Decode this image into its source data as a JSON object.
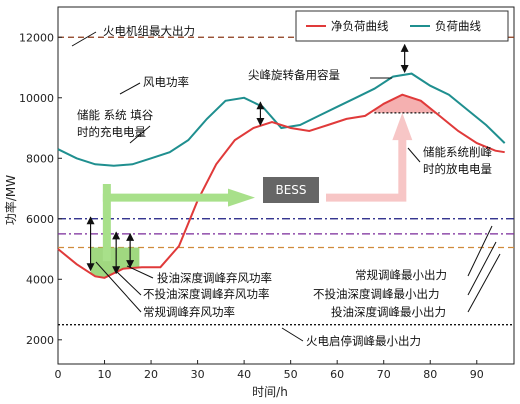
{
  "chart_data": {
    "type": "line",
    "xlabel": "时间/h",
    "ylabel": "功率/MW",
    "xlim": [
      0,
      98
    ],
    "ylim": [
      1200,
      13000
    ],
    "x_ticks": [
      0,
      10,
      20,
      30,
      40,
      50,
      60,
      70,
      80,
      90
    ],
    "y_ticks": [
      2000,
      4000,
      6000,
      8000,
      10000,
      12000
    ],
    "legend_placement": "top-right",
    "series": [
      {
        "name": "净负荷曲线",
        "color": "#e03a3a",
        "x": [
          0,
          4,
          8,
          10,
          14,
          18,
          22,
          26,
          30,
          34,
          38,
          42,
          46,
          50,
          54,
          58,
          62,
          66,
          70,
          74,
          78,
          82,
          86,
          90,
          94,
          96
        ],
        "y": [
          5000,
          4500,
          4100,
          4050,
          4350,
          4400,
          4400,
          5100,
          6600,
          7800,
          8600,
          9000,
          9200,
          9000,
          8900,
          9100,
          9300,
          9400,
          9800,
          10100,
          9900,
          9400,
          8900,
          8500,
          8250,
          8200
        ]
      },
      {
        "name": "负荷曲线",
        "color": "#1f8f8f",
        "x": [
          0,
          4,
          8,
          12,
          16,
          20,
          24,
          28,
          32,
          36,
          40,
          44,
          48,
          52,
          56,
          60,
          64,
          68,
          72,
          76,
          80,
          84,
          88,
          92,
          96
        ],
        "y": [
          8300,
          8000,
          7800,
          7750,
          7800,
          8000,
          8200,
          8600,
          9300,
          9900,
          10000,
          9700,
          9000,
          9100,
          9400,
          9700,
          10000,
          10300,
          10700,
          10800,
          10400,
          10100,
          9600,
          9100,
          8500
        ]
      }
    ],
    "reference_lines": [
      {
        "label": "火电机组最大出力",
        "y": 12000,
        "color": "#8b3a1a",
        "style": "dashed"
      },
      {
        "label": "常规调峰最小出力",
        "y": 6000,
        "color": "#1a1a80",
        "style": "dashdot"
      },
      {
        "label": "不投油深度调峰最小出力",
        "y": 5500,
        "color": "#7a2a9a",
        "style": "dashdot"
      },
      {
        "label": "投油深度调峰最小出力",
        "y": 5050,
        "color": "#d08a3a",
        "style": "dashed"
      },
      {
        "label": "火电启停调峰最小出力",
        "y": 2500,
        "color": "#111111",
        "style": "dotted"
      }
    ],
    "bess_box_label": "BESS",
    "annotations": {
      "max_output": "火电机组最大出力",
      "wind_power": "风电功率",
      "spike_reserve": "尖峰旋转备用容量",
      "storage_charge_line1": "储能 系统 填谷",
      "storage_charge_line2": "时的充电电量",
      "storage_discharge_line1": "储能系统削峰",
      "storage_discharge_line2": "时的放电电量",
      "oil_deep_curtail": "投油深度调峰弃风功率",
      "no_oil_deep_curtail": "不投油深度调峰弃风功率",
      "conventional_curtail": "常规调峰弃风功率",
      "conventional_min": "常规调峰最小出力",
      "no_oil_min": "不投油深度调峰最小出力",
      "oil_min": "投油深度调峰最小出力",
      "startstop_min": "火电启停调峰最小出力"
    },
    "colors": {
      "valley_fill": "#8fd16a",
      "peak_fill": "#f4a7a7",
      "charge_arrow": "#a8e08a",
      "discharge_arrow": "#f7c6c6",
      "bess_box": "#666666"
    }
  }
}
